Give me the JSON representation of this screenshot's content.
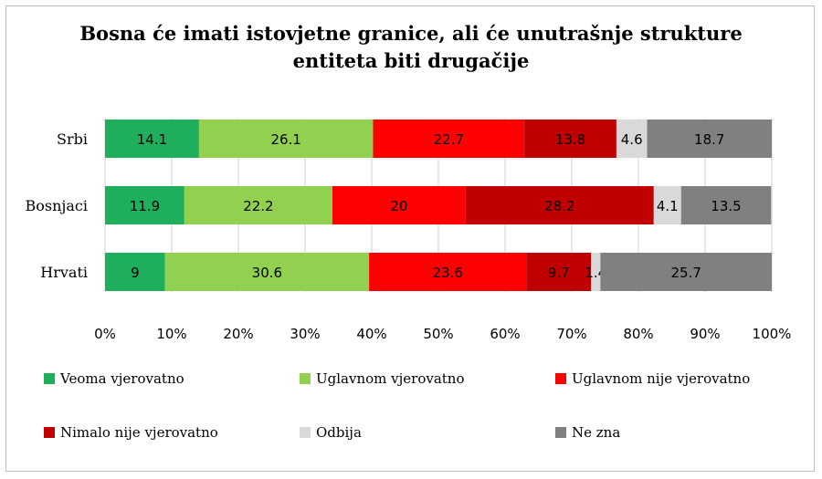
{
  "chart_data": {
    "type": "bar",
    "orientation": "horizontal",
    "stacked": true,
    "percent": true,
    "title": "Bosna će imati istovjetne granice, ali će unutrašnje strukture\nentiteta biti drugačije",
    "categories": [
      "Srbi",
      "Bosnjaci",
      "Hrvati"
    ],
    "series": [
      {
        "name": "Veoma vjerovatno",
        "color": "#1fae5b",
        "values": [
          14.1,
          11.9,
          9
        ]
      },
      {
        "name": "Uglavnom vjerovatno",
        "color": "#92d050",
        "values": [
          26.1,
          22.2,
          30.6
        ]
      },
      {
        "name": "Uglavnom nije vjerovatno",
        "color": "#ff0000",
        "values": [
          22.7,
          20,
          23.6
        ]
      },
      {
        "name": "Nimalo nije vjerovatno",
        "color": "#c00000",
        "values": [
          13.8,
          28.2,
          9.7
        ]
      },
      {
        "name": "Odbija",
        "color": "#d9d9d9",
        "values": [
          4.6,
          4.1,
          1.4
        ]
      },
      {
        "name": "Ne zna",
        "color": "#808080",
        "values": [
          18.7,
          13.5,
          25.7
        ]
      }
    ],
    "xlim": [
      0,
      100
    ],
    "xticks": [
      "0%",
      "10%",
      "20%",
      "30%",
      "40%",
      "50%",
      "60%",
      "70%",
      "80%",
      "90%",
      "100%"
    ],
    "grid": true,
    "legend_position": "bottom"
  }
}
